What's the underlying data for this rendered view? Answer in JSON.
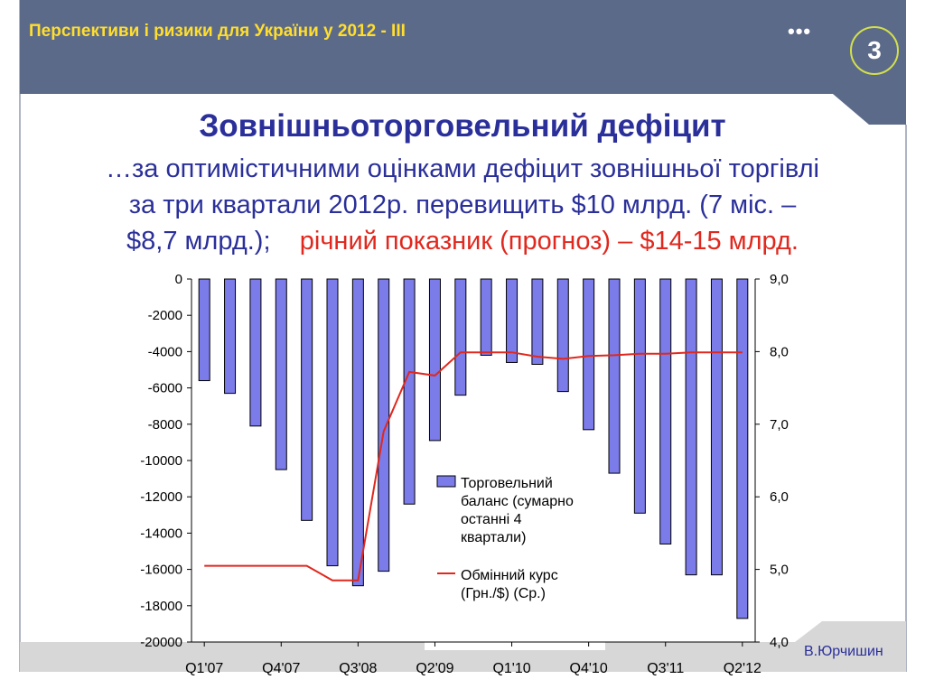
{
  "header": {
    "title": "Перспективи і ризики для України у 2012 - III",
    "dots": "•••"
  },
  "slide_number": "3",
  "title": "Зовнішньоторговельний дефіцит",
  "subtitle": {
    "line1": "…за оптимістичними оцінками дефіцит зовнішньої торгівлі",
    "line2": "за три квартали 2012р. перевищить $10 млрд. (7 міс. –",
    "line3a": "$8,7 млрд.);",
    "line3b": "річний показник (прогноз) – $14-15 млрд."
  },
  "author": "В.Юрчишин",
  "colors": {
    "bar": "#7b7bea",
    "line": "#e0281e",
    "header_bg": "#5c6a8a",
    "title": "#2a2f9a",
    "header_text": "#ffde2e"
  },
  "chart_data": {
    "type": "bar",
    "categories": [
      "Q1'07",
      "Q2'07",
      "Q3'07",
      "Q4'07",
      "Q1'08",
      "Q2'08",
      "Q3'08",
      "Q4'08",
      "Q1'09",
      "Q2'09",
      "Q3'09",
      "Q4'09",
      "Q1'10",
      "Q2'10",
      "Q3'10",
      "Q4'10",
      "Q1'11",
      "Q2'11",
      "Q3'11",
      "Q4'11",
      "Q1'12",
      "Q2'12"
    ],
    "x_tick_labels": [
      "Q1'07",
      "Q4'07",
      "Q3'08",
      "Q2'09",
      "Q1'10",
      "Q4'10",
      "Q3'11",
      "Q2'12"
    ],
    "series": [
      {
        "name": "Торговельний баланс (сумарно останні 4 квартали)",
        "axis": "left",
        "values": [
          -5600,
          -6300,
          -8100,
          -10500,
          -13300,
          -15800,
          -16900,
          -16100,
          -12400,
          -8900,
          -6400,
          -4200,
          -4600,
          -4700,
          -6200,
          -8300,
          -10700,
          -12900,
          -14600,
          -16300,
          -16300,
          -18700
        ]
      },
      {
        "name": "Обмінний курс (Грн./$) (Ср.)",
        "axis": "right",
        "values": [
          5.05,
          5.05,
          5.05,
          5.05,
          5.05,
          4.85,
          4.85,
          6.9,
          7.72,
          7.67,
          7.99,
          7.99,
          7.99,
          7.93,
          7.9,
          7.94,
          7.95,
          7.97,
          7.97,
          7.99,
          7.99,
          7.99
        ]
      }
    ],
    "y_left": {
      "min": -20000,
      "max": 0,
      "step": 2000,
      "ticks": [
        "0",
        "-2000",
        "-4000",
        "-6000",
        "-8000",
        "-10000",
        "-12000",
        "-14000",
        "-16000",
        "-18000",
        "-20000"
      ]
    },
    "y_right": {
      "min": 4.0,
      "max": 9.0,
      "ticks": [
        "9,0",
        "8,0",
        "7,0",
        "6,0",
        "5,0",
        "4,0"
      ]
    },
    "legend": {
      "placement": "inside-bottom-center",
      "bar_lines": [
        "Торговельний",
        "баланс (сумарно",
        "останні 4",
        "квартали)"
      ],
      "line_lines": [
        "Обмінний курс",
        "(Грн./$) (Ср.)"
      ]
    },
    "grid": false
  }
}
